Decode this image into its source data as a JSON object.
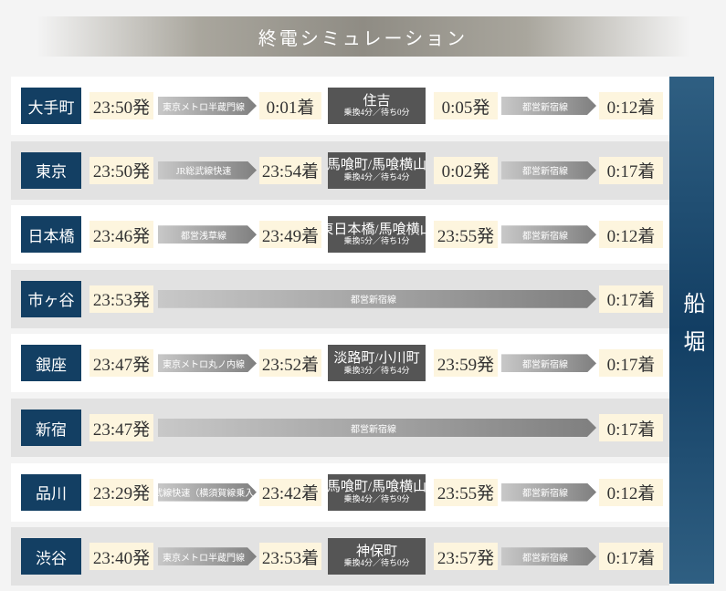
{
  "title": "終電シミュレーション",
  "destination": "船堀",
  "rows": [
    {
      "station": "大手町",
      "depart": "23:50発",
      "line": "東京メトロ半蔵門線",
      "arrive": "0:01着",
      "transfer": "住吉",
      "transfer_note": "乗換4分／待ち0分",
      "depart2": "0:05発",
      "line2": "都営新宿線",
      "arrive2": "0:12着"
    },
    {
      "station": "東京",
      "depart": "23:50発",
      "line": "JR総武線快速",
      "arrive": "23:54着",
      "transfer": "馬喰町/馬喰横山",
      "transfer_note": "乗換4分／待ち4分",
      "depart2": "0:02発",
      "line2": "都営新宿線",
      "arrive2": "0:17着"
    },
    {
      "station": "日本橋",
      "depart": "23:46発",
      "line": "都営浅草線",
      "arrive": "23:49着",
      "transfer": "東日本橋/馬喰横山",
      "transfer_note": "乗換5分／待ち1分",
      "depart2": "23:55発",
      "line2": "都営新宿線",
      "arrive2": "0:12着"
    },
    {
      "station": "市ヶ谷",
      "depart": "23:53発",
      "line": "都営新宿線",
      "arrive": "0:17着"
    },
    {
      "station": "銀座",
      "depart": "23:47発",
      "line": "東京メトロ丸ノ内線",
      "arrive": "23:52着",
      "transfer": "淡路町/小川町",
      "transfer_note": "乗換3分／待ち4分",
      "depart2": "23:59発",
      "line2": "都営新宿線",
      "arrive2": "0:17着"
    },
    {
      "station": "新宿",
      "depart": "23:47発",
      "line": "都営新宿線",
      "arrive": "0:17着"
    },
    {
      "station": "品川",
      "depart": "23:29発",
      "line": "JR総武線快速（横須賀線乗入れ）",
      "arrive": "23:42着",
      "transfer": "馬喰町/馬喰横山",
      "transfer_note": "乗換4分／待ち9分",
      "depart2": "23:55発",
      "line2": "都営新宿線",
      "arrive2": "0:12着"
    },
    {
      "station": "渋谷",
      "depart": "23:40発",
      "line": "東京メトロ半蔵門線",
      "arrive": "23:53着",
      "transfer": "神保町",
      "transfer_note": "乗換4分／待ち0分",
      "depart2": "23:57発",
      "line2": "都営新宿線",
      "arrive2": "0:17着"
    }
  ]
}
